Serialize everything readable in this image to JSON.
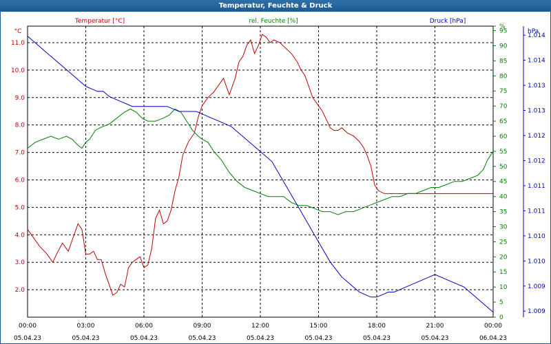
{
  "window": {
    "title": "Temperatur, Feuchte & Druck"
  },
  "chart_data": {
    "type": "line",
    "title": "Temperatur, Feuchte & Druck",
    "colors": {
      "temperature": "#c00000",
      "humidity": "#008000",
      "pressure": "#0000c0",
      "grid": "#000000"
    },
    "x_ticks": [
      {
        "time": "00:00",
        "date": "05.04.23"
      },
      {
        "time": "03:00",
        "date": "05.04.23"
      },
      {
        "time": "06:00",
        "date": "05.04.23"
      },
      {
        "time": "09:00",
        "date": "05.04.23"
      },
      {
        "time": "12:00",
        "date": "05.04.23"
      },
      {
        "time": "15:00",
        "date": "05.04.23"
      },
      {
        "time": "18:00",
        "date": "05.04.23"
      },
      {
        "time": "21:00",
        "date": "05.04.23"
      },
      {
        "time": "00:00",
        "date": "06.04.23"
      }
    ],
    "xlim_hours": [
      0,
      24
    ],
    "axes": {
      "temperature": {
        "unit": "°C",
        "ylim": [
          1.0,
          11.6
        ],
        "ticks": [
          "2.0",
          "3.0",
          "4.0",
          "5.0",
          "6.0",
          "7.0",
          "8.0",
          "9.0",
          "10.0",
          "11.0"
        ],
        "tick_values": [
          2,
          3,
          4,
          5,
          6,
          7,
          8,
          9,
          10,
          11
        ]
      },
      "humidity": {
        "unit": "%",
        "ylim": [
          0,
          96.5
        ],
        "ticks": [
          "0",
          "5",
          "10",
          "15",
          "20",
          "25",
          "30",
          "35",
          "40",
          "45",
          "50",
          "55",
          "60",
          "65",
          "70",
          "75",
          "80",
          "85",
          "90",
          "95",
          "%"
        ],
        "tick_values": [
          0,
          5,
          10,
          15,
          20,
          25,
          30,
          35,
          40,
          45,
          50,
          55,
          60,
          65,
          70,
          75,
          80,
          85,
          90,
          95,
          96.5
        ]
      },
      "pressure": {
        "unit": "hPa",
        "ylim": [
          1008.8,
          1014.6
        ],
        "ticks": [
          "1.009",
          "1.009",
          "1.010",
          "1.010",
          "1.011",
          "1.011",
          "1.012",
          "1.012",
          "1.013",
          "1.013",
          "1.014",
          "1.014"
        ],
        "tick_values": [
          1008.92,
          1009.42,
          1009.92,
          1010.42,
          1010.92,
          1011.42,
          1011.92,
          1012.42,
          1012.92,
          1013.42,
          1013.92,
          1014.42
        ]
      }
    },
    "series": [
      {
        "name": "Temperatur [°C]",
        "axis": "temperature",
        "x": [
          0,
          0.3,
          0.6,
          1.0,
          1.3,
          1.5,
          1.8,
          2.1,
          2.4,
          2.6,
          2.8,
          3.0,
          3.2,
          3.4,
          3.6,
          3.8,
          4.0,
          4.2,
          4.4,
          4.6,
          4.8,
          5.0,
          5.2,
          5.4,
          5.6,
          5.8,
          6.0,
          6.2,
          6.4,
          6.6,
          6.8,
          7.0,
          7.2,
          7.4,
          7.6,
          7.8,
          8.0,
          8.3,
          8.6,
          8.8,
          9.0,
          9.3,
          9.6,
          9.9,
          10.1,
          10.4,
          10.7,
          10.9,
          11.1,
          11.3,
          11.5,
          11.7,
          11.9,
          12.1,
          12.3,
          12.5,
          12.7,
          13.0,
          13.3,
          13.6,
          13.9,
          14.1,
          14.3,
          14.5,
          14.7,
          15.0,
          15.2,
          15.4,
          15.6,
          15.8,
          16.0,
          16.2,
          16.5,
          16.8,
          17.1,
          17.3,
          17.5,
          17.7,
          17.9,
          18.1,
          18.4,
          18.8,
          19.2,
          19.6,
          20.0,
          20.4,
          20.8,
          21.1,
          21.4,
          21.8,
          22.2,
          22.6,
          23.0,
          23.3,
          23.5,
          23.7,
          23.9,
          24.0
        ],
        "values": [
          4.2,
          3.9,
          3.6,
          3.3,
          3.0,
          3.3,
          3.7,
          3.4,
          4.0,
          4.4,
          4.2,
          3.3,
          3.3,
          3.4,
          3.1,
          3.1,
          2.6,
          2.2,
          1.8,
          1.9,
          2.2,
          2.1,
          2.8,
          3.0,
          3.1,
          3.2,
          2.8,
          2.9,
          3.5,
          4.6,
          4.9,
          4.4,
          4.5,
          4.9,
          5.6,
          6.1,
          6.9,
          7.4,
          7.7,
          8.3,
          8.7,
          9.0,
          9.2,
          9.5,
          9.7,
          9.1,
          9.7,
          10.3,
          10.5,
          10.9,
          11.1,
          10.6,
          10.9,
          11.3,
          11.2,
          11.0,
          11.1,
          11.0,
          10.8,
          10.6,
          10.3,
          10.0,
          9.8,
          9.4,
          9.0,
          8.7,
          8.5,
          8.2,
          7.9,
          7.8,
          7.8,
          7.9,
          7.7,
          7.6,
          7.4,
          7.2,
          6.9,
          6.5,
          5.8,
          5.6,
          5.5,
          5.5,
          5.5,
          5.5,
          5.5,
          5.5,
          5.5,
          5.5,
          5.5,
          5.5,
          5.5,
          5.5,
          5.5,
          5.5,
          5.5,
          5.5,
          5.5,
          5.5
        ]
      },
      {
        "name": "rel. Feuchte [%]",
        "axis": "humidity",
        "x": [
          0,
          0.4,
          0.8,
          1.2,
          1.6,
          2.0,
          2.3,
          2.6,
          2.8,
          3.0,
          3.2,
          3.5,
          3.8,
          4.2,
          4.6,
          5.0,
          5.3,
          5.6,
          5.9,
          6.2,
          6.6,
          7.0,
          7.3,
          7.6,
          7.9,
          8.2,
          8.5,
          8.8,
          9.0,
          9.3,
          9.6,
          10.0,
          10.4,
          10.8,
          11.2,
          11.6,
          12.0,
          12.4,
          12.8,
          13.2,
          13.6,
          14.0,
          14.4,
          14.8,
          15.2,
          15.6,
          16.0,
          16.4,
          16.8,
          17.2,
          17.6,
          18.0,
          18.4,
          18.8,
          19.2,
          19.6,
          20.0,
          20.4,
          20.8,
          21.2,
          21.6,
          22.0,
          22.4,
          22.8,
          23.2,
          23.5,
          23.7,
          23.9,
          24.0
        ],
        "values": [
          56,
          58,
          59,
          60,
          59,
          60,
          59,
          57,
          56,
          58,
          59,
          62,
          63,
          64,
          66,
          68,
          69,
          68,
          66,
          65,
          65,
          66,
          67,
          69,
          68,
          65,
          62,
          60,
          59,
          58,
          55,
          52,
          48,
          45,
          43,
          42,
          41,
          40,
          40,
          40,
          38,
          37,
          37,
          36,
          35,
          35,
          34,
          35,
          35,
          36,
          37,
          38,
          39,
          40,
          40,
          41,
          41,
          42,
          43,
          43,
          44,
          45,
          45,
          46,
          47,
          49,
          52,
          54,
          55
        ]
      },
      {
        "name": "Druck [hPa]",
        "axis": "pressure",
        "x": [
          0,
          0.3,
          0.6,
          0.9,
          1.2,
          1.5,
          1.8,
          2.1,
          2.4,
          2.7,
          3.0,
          3.3,
          3.6,
          3.9,
          4.2,
          4.5,
          4.8,
          5.1,
          5.4,
          5.7,
          6.0,
          6.3,
          6.6,
          6.9,
          7.2,
          7.5,
          7.8,
          8.1,
          8.4,
          8.7,
          9.0,
          9.3,
          9.6,
          9.9,
          10.2,
          10.5,
          10.8,
          11.1,
          11.4,
          11.7,
          12.0,
          12.3,
          12.6,
          12.9,
          13.2,
          13.5,
          13.8,
          14.1,
          14.4,
          14.7,
          15.0,
          15.3,
          15.6,
          15.9,
          16.2,
          16.5,
          16.8,
          17.1,
          17.4,
          17.7,
          18.0,
          18.3,
          18.6,
          18.9,
          19.2,
          19.5,
          19.8,
          20.1,
          20.4,
          20.7,
          21.0,
          21.3,
          21.6,
          21.9,
          22.2,
          22.5,
          22.8,
          23.1,
          23.4,
          23.7,
          24.0
        ],
        "values": [
          1014.4,
          1014.3,
          1014.2,
          1014.1,
          1014.0,
          1013.9,
          1013.8,
          1013.7,
          1013.6,
          1013.5,
          1013.4,
          1013.35,
          1013.3,
          1013.3,
          1013.2,
          1013.15,
          1013.1,
          1013.05,
          1013.0,
          1013.0,
          1013.0,
          1013.0,
          1013.0,
          1013.0,
          1013.0,
          1012.95,
          1012.9,
          1012.9,
          1012.9,
          1012.9,
          1012.85,
          1012.8,
          1012.75,
          1012.7,
          1012.65,
          1012.6,
          1012.5,
          1012.4,
          1012.3,
          1012.2,
          1012.1,
          1012.0,
          1011.9,
          1011.7,
          1011.5,
          1011.3,
          1011.1,
          1010.9,
          1010.7,
          1010.5,
          1010.3,
          1010.1,
          1009.9,
          1009.75,
          1009.6,
          1009.5,
          1009.4,
          1009.3,
          1009.25,
          1009.2,
          1009.2,
          1009.25,
          1009.3,
          1009.3,
          1009.35,
          1009.4,
          1009.45,
          1009.5,
          1009.55,
          1009.6,
          1009.65,
          1009.6,
          1009.55,
          1009.5,
          1009.45,
          1009.4,
          1009.3,
          1009.2,
          1009.1,
          1009.0,
          1008.9
        ]
      }
    ]
  }
}
